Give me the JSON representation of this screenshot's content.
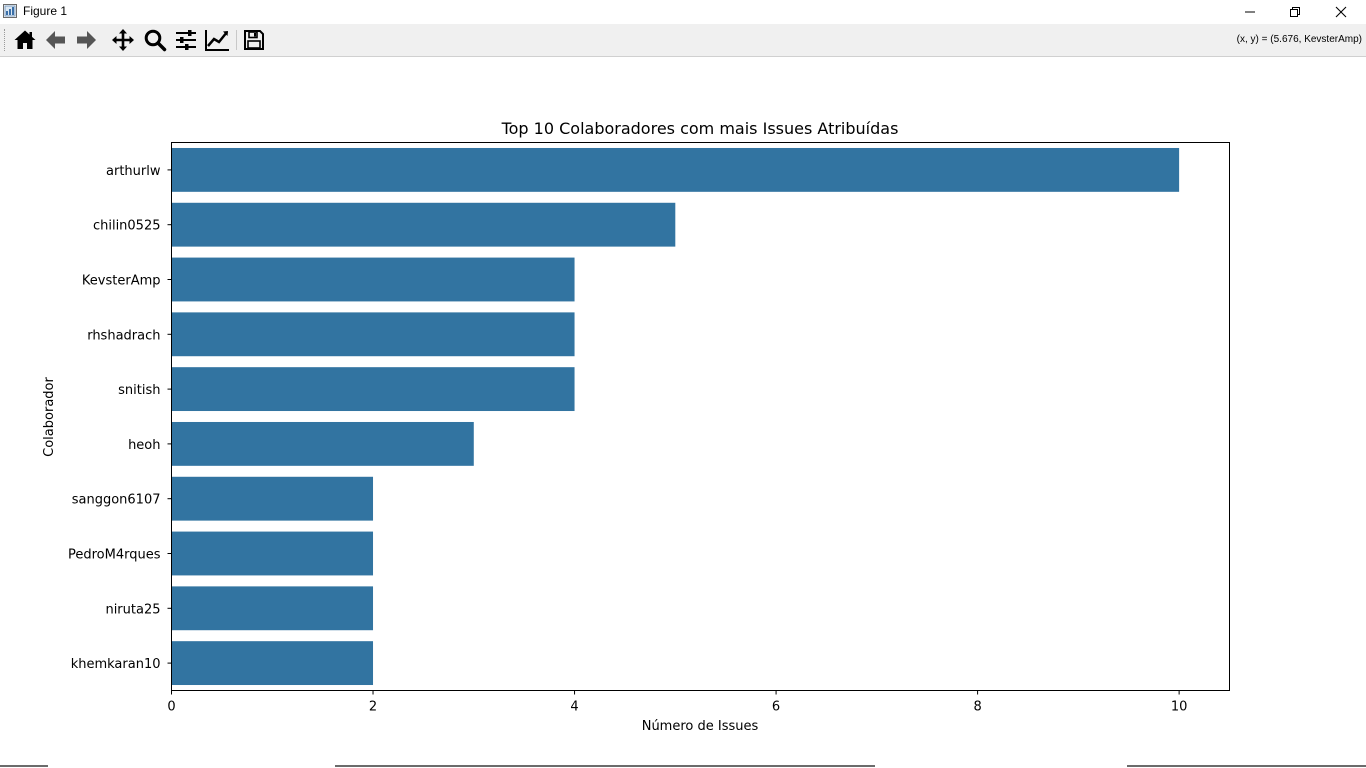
{
  "window": {
    "title": "Figure 1",
    "controls": {
      "minimize_icon": "minimize-icon",
      "maximize_icon": "restore-icon",
      "close_icon": "close-icon"
    }
  },
  "toolbar": {
    "buttons": [
      {
        "name": "home",
        "icon": "home-icon"
      },
      {
        "name": "back",
        "icon": "arrow-left-icon"
      },
      {
        "name": "forward",
        "icon": "arrow-right-icon"
      },
      {
        "name": "pan",
        "icon": "move-icon"
      },
      {
        "name": "zoom",
        "icon": "search-icon"
      },
      {
        "name": "configure-subplots",
        "icon": "sliders-icon"
      },
      {
        "name": "edit-axes",
        "icon": "line-chart-icon"
      },
      {
        "name": "save",
        "icon": "floppy-disk-icon"
      }
    ],
    "coordinates": "(x, y) = (5.676, KevsterAmp)"
  },
  "colors": {
    "bar": "#3274a1",
    "axis": "#000000",
    "background": "#ffffff"
  },
  "chart_data": {
    "type": "bar",
    "orientation": "horizontal",
    "title": "Top 10 Colaboradores com mais Issues Atribuídas",
    "xlabel": "Número de Issues",
    "ylabel": "Colaborador",
    "categories": [
      "arthurlw",
      "chilin0525",
      "KevsterAmp",
      "rhshadrach",
      "snitish",
      "heoh",
      "sanggon6107",
      "PedroM4rques",
      "niruta25",
      "khemkaran10"
    ],
    "values": [
      10,
      5,
      4,
      4,
      4,
      3,
      2,
      2,
      2,
      2
    ],
    "xlim": [
      0,
      10.5
    ],
    "xticks": [
      0,
      2,
      4,
      6,
      8,
      10
    ],
    "grid": false,
    "legend": "none"
  }
}
